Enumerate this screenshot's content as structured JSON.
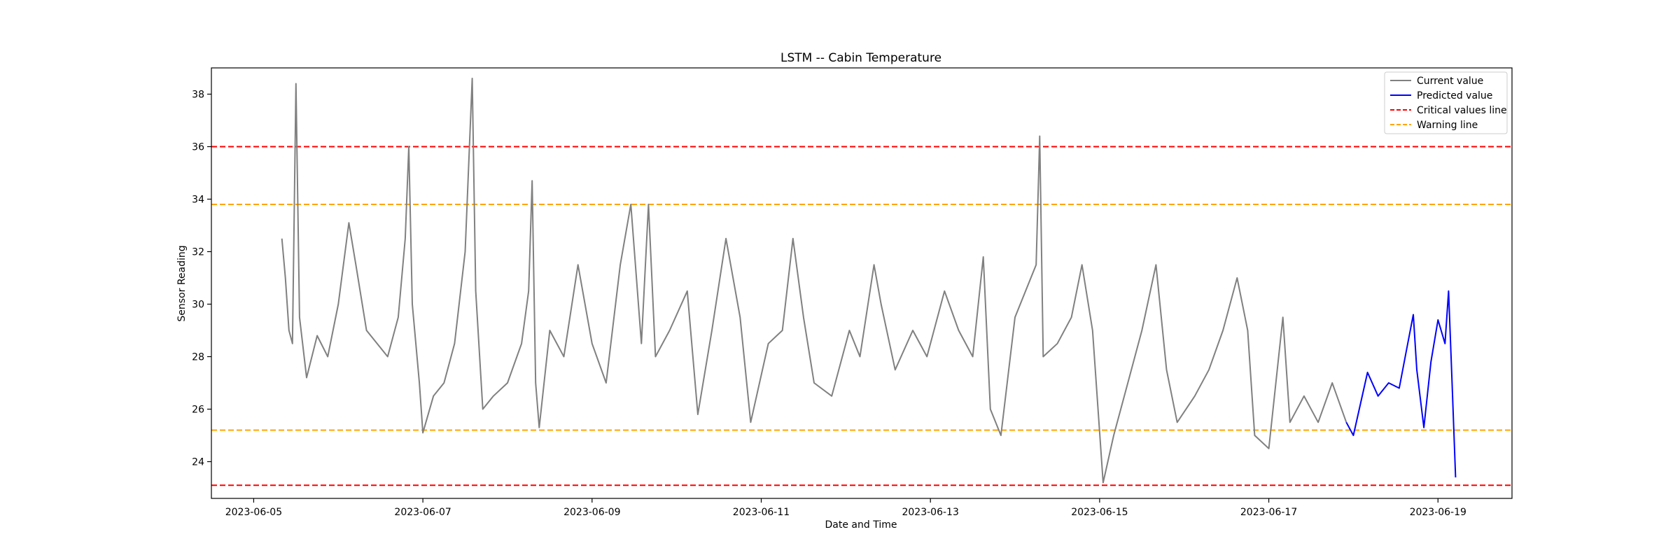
{
  "chart_data": {
    "type": "line",
    "title": "LSTM -- Cabin Temperature",
    "xlabel": "Date and Time",
    "ylabel": "Sensor Reading",
    "x_range": [
      "2023-06-04T12:00",
      "2023-06-19T21:00"
    ],
    "ylim": [
      22.6,
      39.0
    ],
    "x_ticks": [
      "2023-06-05",
      "2023-06-07",
      "2023-06-09",
      "2023-06-11",
      "2023-06-13",
      "2023-06-15",
      "2023-06-17",
      "2023-06-19"
    ],
    "y_ticks": [
      24,
      26,
      28,
      30,
      32,
      34,
      36,
      38
    ],
    "grid": false,
    "legend_position": "top-right",
    "reference_lines": [
      {
        "name": "Critical values line",
        "y": 36.0,
        "color": "#ff0000",
        "style": "dashed"
      },
      {
        "name": "Critical values line",
        "y": 23.1,
        "color": "#ff0000",
        "style": "dashed"
      },
      {
        "name": "Warning line",
        "y": 33.8,
        "color": "#ffa500",
        "style": "dashed"
      },
      {
        "name": "Warning line",
        "y": 25.2,
        "color": "#ffa500",
        "style": "dashed"
      }
    ],
    "series": [
      {
        "name": "Current value",
        "color": "#808080",
        "points": [
          [
            "2023-06-05T08:00",
            32.5
          ],
          [
            "2023-06-05T09:00",
            31.0
          ],
          [
            "2023-06-05T10:00",
            29.0
          ],
          [
            "2023-06-05T11:00",
            28.5
          ],
          [
            "2023-06-05T12:00",
            38.4
          ],
          [
            "2023-06-05T13:00",
            29.5
          ],
          [
            "2023-06-05T15:00",
            27.2
          ],
          [
            "2023-06-05T18:00",
            28.8
          ],
          [
            "2023-06-05T21:00",
            28.0
          ],
          [
            "2023-06-06T00:00",
            30.0
          ],
          [
            "2023-06-06T03:00",
            33.1
          ],
          [
            "2023-06-06T05:00",
            31.5
          ],
          [
            "2023-06-06T08:00",
            29.0
          ],
          [
            "2023-06-06T11:00",
            28.5
          ],
          [
            "2023-06-06T14:00",
            28.0
          ],
          [
            "2023-06-06T17:00",
            29.5
          ],
          [
            "2023-06-06T19:00",
            32.5
          ],
          [
            "2023-06-06T20:00",
            36.0
          ],
          [
            "2023-06-06T21:00",
            30.0
          ],
          [
            "2023-06-06T23:00",
            27.0
          ],
          [
            "2023-06-07T00:00",
            25.1
          ],
          [
            "2023-06-07T03:00",
            26.5
          ],
          [
            "2023-06-07T06:00",
            27.0
          ],
          [
            "2023-06-07T09:00",
            28.5
          ],
          [
            "2023-06-07T12:00",
            32.0
          ],
          [
            "2023-06-07T14:00",
            38.6
          ],
          [
            "2023-06-07T15:00",
            30.5
          ],
          [
            "2023-06-07T17:00",
            26.0
          ],
          [
            "2023-06-07T20:00",
            26.5
          ],
          [
            "2023-06-08T00:00",
            27.0
          ],
          [
            "2023-06-08T04:00",
            28.5
          ],
          [
            "2023-06-08T06:00",
            30.5
          ],
          [
            "2023-06-08T07:00",
            34.7
          ],
          [
            "2023-06-08T08:00",
            27.0
          ],
          [
            "2023-06-08T09:00",
            25.3
          ],
          [
            "2023-06-08T12:00",
            29.0
          ],
          [
            "2023-06-08T16:00",
            28.0
          ],
          [
            "2023-06-08T20:00",
            31.5
          ],
          [
            "2023-06-09T00:00",
            28.5
          ],
          [
            "2023-06-09T04:00",
            27.0
          ],
          [
            "2023-06-09T08:00",
            31.5
          ],
          [
            "2023-06-09T11:00",
            33.8
          ],
          [
            "2023-06-09T14:00",
            28.5
          ],
          [
            "2023-06-09T16:00",
            33.8
          ],
          [
            "2023-06-09T18:00",
            28.0
          ],
          [
            "2023-06-09T22:00",
            29.0
          ],
          [
            "2023-06-10T03:00",
            30.5
          ],
          [
            "2023-06-10T06:00",
            25.8
          ],
          [
            "2023-06-10T10:00",
            29.0
          ],
          [
            "2023-06-10T14:00",
            32.5
          ],
          [
            "2023-06-10T18:00",
            29.5
          ],
          [
            "2023-06-10T21:00",
            25.5
          ],
          [
            "2023-06-11T02:00",
            28.5
          ],
          [
            "2023-06-11T06:00",
            29.0
          ],
          [
            "2023-06-11T09:00",
            32.5
          ],
          [
            "2023-06-11T12:00",
            29.5
          ],
          [
            "2023-06-11T15:00",
            27.0
          ],
          [
            "2023-06-11T20:00",
            26.5
          ],
          [
            "2023-06-12T01:00",
            29.0
          ],
          [
            "2023-06-12T04:00",
            28.0
          ],
          [
            "2023-06-12T08:00",
            31.5
          ],
          [
            "2023-06-12T10:00",
            30.0
          ],
          [
            "2023-06-12T14:00",
            27.5
          ],
          [
            "2023-06-12T19:00",
            29.0
          ],
          [
            "2023-06-12T23:00",
            28.0
          ],
          [
            "2023-06-13T04:00",
            30.5
          ],
          [
            "2023-06-13T08:00",
            29.0
          ],
          [
            "2023-06-13T12:00",
            28.0
          ],
          [
            "2023-06-13T15:00",
            31.8
          ],
          [
            "2023-06-13T17:00",
            26.0
          ],
          [
            "2023-06-13T20:00",
            25.0
          ],
          [
            "2023-06-14T00:00",
            29.5
          ],
          [
            "2023-06-14T03:00",
            30.5
          ],
          [
            "2023-06-14T06:00",
            31.5
          ],
          [
            "2023-06-14T07:00",
            36.4
          ],
          [
            "2023-06-14T08:00",
            28.0
          ],
          [
            "2023-06-14T12:00",
            28.5
          ],
          [
            "2023-06-14T16:00",
            29.5
          ],
          [
            "2023-06-14T19:00",
            31.5
          ],
          [
            "2023-06-14T22:00",
            29.0
          ],
          [
            "2023-06-15T01:00",
            23.2
          ],
          [
            "2023-06-15T04:00",
            25.0
          ],
          [
            "2023-06-15T08:00",
            27.0
          ],
          [
            "2023-06-15T12:00",
            29.0
          ],
          [
            "2023-06-15T16:00",
            31.5
          ],
          [
            "2023-06-15T19:00",
            27.5
          ],
          [
            "2023-06-15T22:00",
            25.5
          ],
          [
            "2023-06-16T03:00",
            26.5
          ],
          [
            "2023-06-16T07:00",
            27.5
          ],
          [
            "2023-06-16T11:00",
            29.0
          ],
          [
            "2023-06-16T15:00",
            31.0
          ],
          [
            "2023-06-16T18:00",
            29.0
          ],
          [
            "2023-06-16T20:00",
            25.0
          ],
          [
            "2023-06-17T00:00",
            24.5
          ],
          [
            "2023-06-17T04:00",
            29.5
          ],
          [
            "2023-06-17T06:00",
            25.5
          ],
          [
            "2023-06-17T10:00",
            26.5
          ],
          [
            "2023-06-17T14:00",
            25.5
          ],
          [
            "2023-06-17T18:00",
            27.0
          ],
          [
            "2023-06-17T22:00",
            25.5
          ]
        ]
      },
      {
        "name": "Predicted value",
        "color": "#0000ff",
        "points": [
          [
            "2023-06-17T22:00",
            25.5
          ],
          [
            "2023-06-18T00:00",
            25.0
          ],
          [
            "2023-06-18T02:00",
            26.2
          ],
          [
            "2023-06-18T04:00",
            27.4
          ],
          [
            "2023-06-18T07:00",
            26.5
          ],
          [
            "2023-06-18T10:00",
            27.0
          ],
          [
            "2023-06-18T13:00",
            26.8
          ],
          [
            "2023-06-18T15:00",
            28.2
          ],
          [
            "2023-06-18T17:00",
            29.6
          ],
          [
            "2023-06-18T18:00",
            27.5
          ],
          [
            "2023-06-18T20:00",
            25.3
          ],
          [
            "2023-06-18T22:00",
            27.8
          ],
          [
            "2023-06-19T00:00",
            29.4
          ],
          [
            "2023-06-19T02:00",
            28.5
          ],
          [
            "2023-06-19T03:00",
            30.5
          ],
          [
            "2023-06-19T04:00",
            27.0
          ],
          [
            "2023-06-19T05:00",
            23.4
          ]
        ]
      }
    ],
    "legend": [
      {
        "label": "Current value",
        "color": "#808080",
        "style": "solid"
      },
      {
        "label": "Predicted value",
        "color": "#0000ff",
        "style": "solid"
      },
      {
        "label": "Critical values line",
        "color": "#ff0000",
        "style": "dashed"
      },
      {
        "label": "Warning line",
        "color": "#ffa500",
        "style": "dashed"
      }
    ]
  }
}
